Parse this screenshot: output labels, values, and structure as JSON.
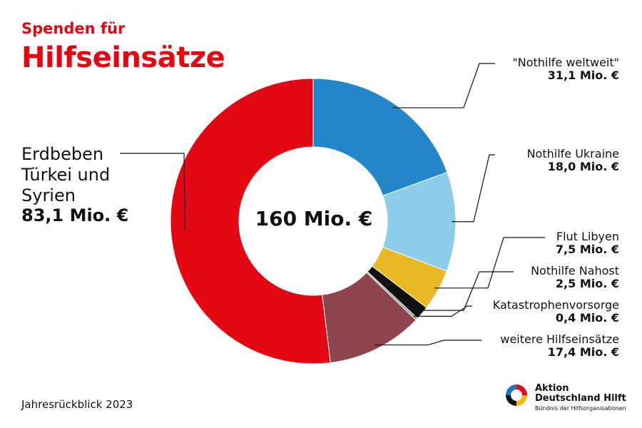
{
  "header": {
    "line1": "Spenden für",
    "line2": "Hilfseinsätze"
  },
  "footer": {
    "year_label": "Jahresrückblick 2023"
  },
  "logo": {
    "line1": "Aktion",
    "line2": "Deutschland Hilft",
    "line3": "Bündnis der Hilfsorganisationen"
  },
  "chart_data": {
    "type": "pie",
    "variant": "donut",
    "center_label": "160 Mio. €",
    "slices": [
      {
        "name": "\"Nothilfe weltweit\"",
        "value": 31.1,
        "value_label": "31,1 Mio. €",
        "color": "#2386c8"
      },
      {
        "name": "Nothilfe Ukraine",
        "value": 18.0,
        "value_label": "18,0 Mio. €",
        "color": "#8ecdea"
      },
      {
        "name": "Flut Libyen",
        "value": 7.5,
        "value_label": "7,5 Mio. €",
        "color": "#e9b824"
      },
      {
        "name": "Nothilfe Nahost",
        "value": 2.5,
        "value_label": "2,5 Mio. €",
        "color": "#111111"
      },
      {
        "name": "Katastrophenvorsorge",
        "value": 0.4,
        "value_label": "0,4 Mio. €",
        "color": "#8f8f8f"
      },
      {
        "name": "weitere Hilfseinsätze",
        "value": 17.4,
        "value_label": "17,4 Mio. €",
        "color": "#8e454c"
      },
      {
        "name_lines": [
          "Erdbeben",
          "Türkei und",
          "Syrien"
        ],
        "value": 83.1,
        "value_label": "83,1 Mio. €",
        "color": "#e30613"
      }
    ]
  }
}
